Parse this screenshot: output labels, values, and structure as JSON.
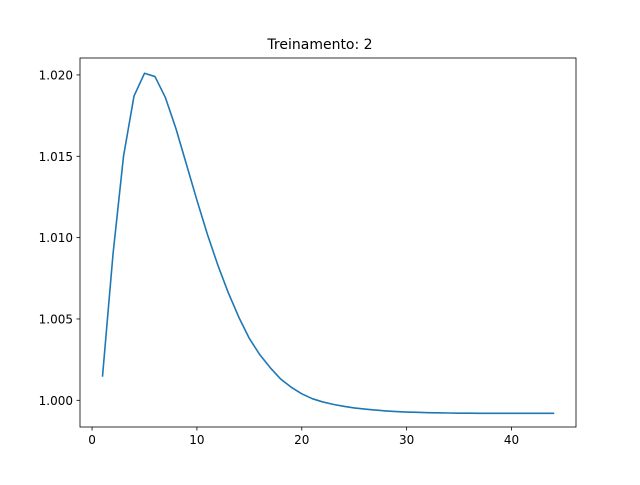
{
  "chart_data": {
    "type": "line",
    "title": "Treinamento: 2",
    "xlabel": "",
    "ylabel": "",
    "xlim": [
      -1.15,
      46.15
    ],
    "ylim": [
      0.99836,
      1.02104
    ],
    "grid": false,
    "legend": "none",
    "x_ticks": [
      {
        "value": 0,
        "label": "0"
      },
      {
        "value": 10,
        "label": "10"
      },
      {
        "value": 20,
        "label": "20"
      },
      {
        "value": 30,
        "label": "30"
      },
      {
        "value": 40,
        "label": "40"
      }
    ],
    "y_ticks": [
      {
        "value": 1.0,
        "label": "1.000"
      },
      {
        "value": 1.005,
        "label": "1.005"
      },
      {
        "value": 1.01,
        "label": "1.010"
      },
      {
        "value": 1.015,
        "label": "1.015"
      },
      {
        "value": 1.02,
        "label": "1.020"
      }
    ],
    "series": [
      {
        "name": "Treinamento",
        "color": "#1f77b4",
        "x": [
          1,
          2,
          3,
          4,
          5,
          6,
          7,
          8,
          9,
          10,
          11,
          12,
          13,
          14,
          15,
          16,
          17,
          18,
          19,
          20,
          21,
          22,
          23,
          24,
          25,
          26,
          27,
          28,
          29,
          30,
          31,
          32,
          33,
          34,
          35,
          36,
          37,
          38,
          39,
          40,
          41,
          42,
          43,
          44
        ],
        "y": [
          1.0015,
          1.009,
          1.015,
          1.0187,
          1.0201,
          1.0199,
          1.0186,
          1.0167,
          1.0145,
          1.0123,
          1.0102,
          1.0083,
          1.0066,
          1.0051,
          1.0038,
          1.0028,
          1.002,
          1.0013,
          1.0008,
          1.0004,
          1.0001,
          0.9999,
          0.99975,
          0.99963,
          0.99953,
          0.99946,
          0.9994,
          0.99935,
          0.99931,
          0.99928,
          0.99926,
          0.99924,
          0.99923,
          0.99922,
          0.99921,
          0.99921,
          0.9992,
          0.9992,
          0.9992,
          0.9992,
          0.9992,
          0.9992,
          0.9992,
          0.9992
        ]
      }
    ]
  }
}
